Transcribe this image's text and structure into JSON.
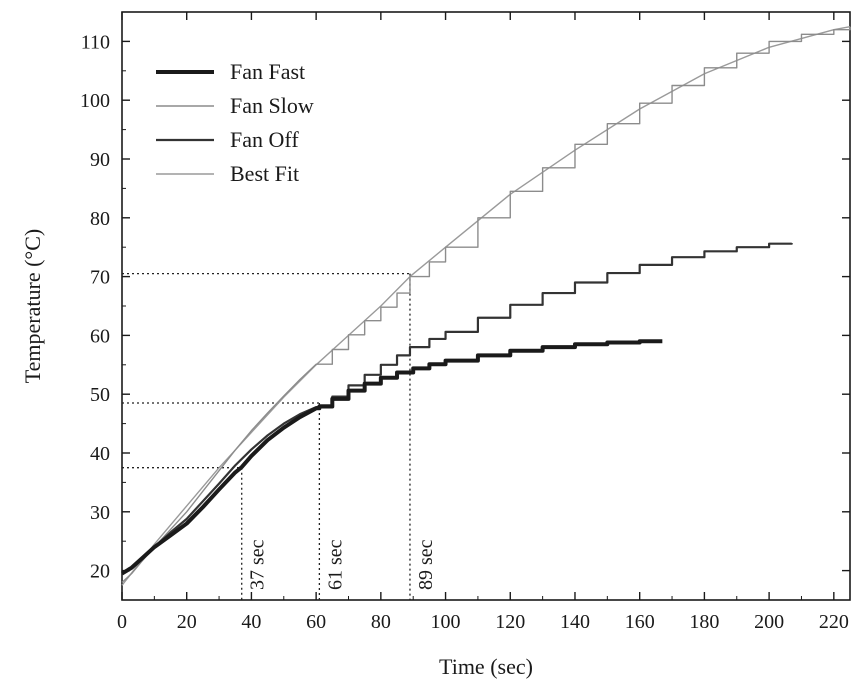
{
  "chart_data": {
    "type": "line",
    "title": "",
    "xlabel": "Time (sec)",
    "ylabel": "Temperature (°C)",
    "xlim": [
      0,
      225
    ],
    "ylim": [
      15,
      115
    ],
    "grid": false,
    "legend_position": "top-left",
    "x_ticks": [
      0,
      20,
      40,
      60,
      80,
      100,
      120,
      140,
      160,
      180,
      200,
      220
    ],
    "y_ticks": [
      20,
      30,
      40,
      50,
      60,
      70,
      80,
      90,
      100,
      110
    ],
    "series": [
      {
        "name": "Fan Fast",
        "style": "thick",
        "color": "#1a1a1a",
        "x": [
          0,
          3,
          6,
          10,
          15,
          20,
          25,
          30,
          35,
          37,
          40,
          45,
          50,
          55,
          60,
          61,
          65,
          70,
          75,
          80,
          85,
          90,
          95,
          100,
          110,
          120,
          130,
          140,
          150,
          160,
          167
        ],
        "y": [
          19.5,
          20.5,
          22,
          24,
          26,
          28,
          30.8,
          33.8,
          36.7,
          37.6,
          39.5,
          42.2,
          44.3,
          46.1,
          47.6,
          47.9,
          49.2,
          50.6,
          51.8,
          52.8,
          53.7,
          54.4,
          55.1,
          55.7,
          56.6,
          57.4,
          58,
          58.5,
          58.8,
          59,
          59
        ]
      },
      {
        "name": "Fan Slow",
        "style": "thin-gray",
        "color": "#8c8c8c",
        "x": [
          0,
          3,
          6,
          10,
          15,
          20,
          25,
          30,
          35,
          40,
          45,
          50,
          55,
          60,
          65,
          70,
          75,
          80,
          85,
          89,
          95,
          100,
          110,
          120,
          130,
          140,
          150,
          160,
          170,
          180,
          190,
          200,
          210,
          220,
          225
        ],
        "y": [
          18,
          19.5,
          21.5,
          24,
          27,
          30,
          33.5,
          37,
          40.5,
          43.8,
          46.8,
          49.7,
          52.5,
          55.1,
          57.6,
          60.1,
          62.5,
          64.8,
          67.2,
          70,
          72.5,
          75,
          80,
          84.5,
          88.5,
          92.5,
          96,
          99.5,
          102.5,
          105.5,
          108,
          110,
          111.2,
          112,
          112.5
        ]
      },
      {
        "name": "Fan Off",
        "style": "medium",
        "color": "#333333",
        "x": [
          0,
          3,
          6,
          10,
          15,
          20,
          25,
          30,
          35,
          40,
          45,
          50,
          55,
          60,
          61,
          65,
          70,
          75,
          80,
          85,
          89,
          95,
          100,
          110,
          120,
          130,
          140,
          150,
          160,
          170,
          180,
          190,
          200,
          207
        ],
        "y": [
          19.5,
          20.5,
          22,
          24,
          26.5,
          28.8,
          31.8,
          34.8,
          37.9,
          40.6,
          43,
          45,
          46.6,
          47.8,
          48.1,
          49.6,
          51.5,
          53.3,
          55,
          56.6,
          58,
          59.4,
          60.6,
          63,
          65.2,
          67.2,
          69,
          70.6,
          72,
          73.3,
          74.3,
          75,
          75.6,
          75.7
        ]
      },
      {
        "name": "Best Fit",
        "style": "thin-gray",
        "color": "#9a9a9a",
        "x": [
          0,
          5,
          10,
          20,
          30,
          40,
          50,
          60,
          70,
          80,
          89,
          100,
          120,
          140,
          160,
          180,
          200,
          220,
          225
        ],
        "y": [
          17.5,
          21,
          24.5,
          31,
          37.5,
          43.5,
          49.5,
          55,
          60,
          65,
          70,
          75,
          84,
          91.5,
          98.5,
          104.5,
          109,
          112,
          112.5
        ]
      }
    ],
    "reference_lines": [
      {
        "x": 37,
        "y": 37.5,
        "label": "37 sec"
      },
      {
        "x": 61,
        "y": 48.5,
        "label": "61 sec"
      },
      {
        "x": 89,
        "y": 70.5,
        "label": "89 sec"
      }
    ]
  }
}
